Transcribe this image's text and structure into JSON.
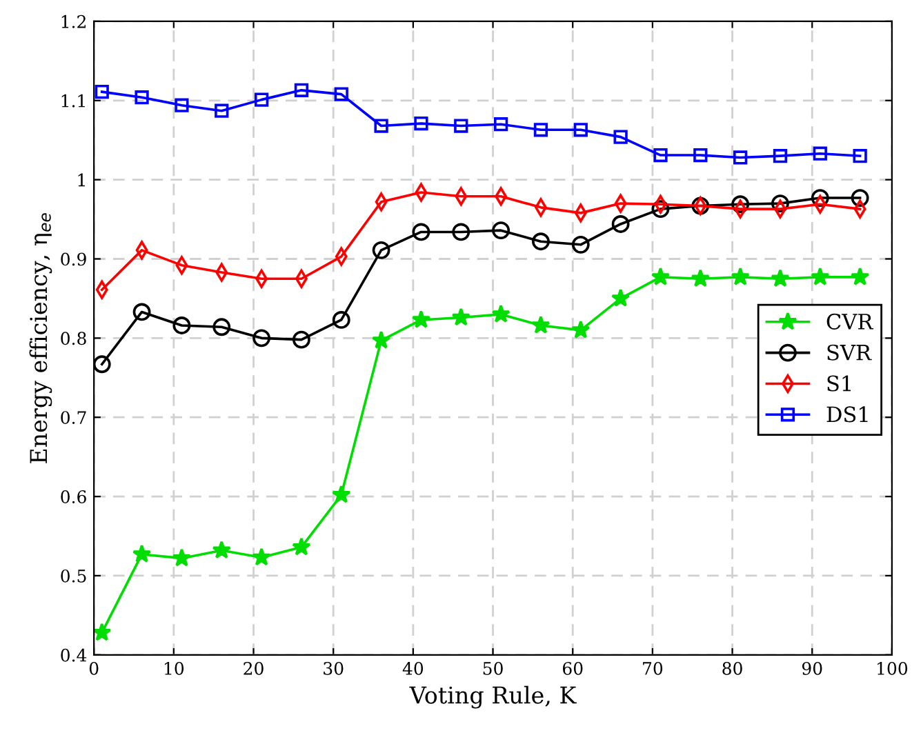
{
  "chart_data": {
    "type": "line",
    "xlabel": "Voting Rule, K",
    "ylabel": "Energy efficiency, η$_{ee}$",
    "x": [
      1,
      6,
      11,
      16,
      21,
      26,
      31,
      36,
      41,
      46,
      51,
      56,
      61,
      66,
      71,
      76,
      81,
      86,
      91,
      96
    ],
    "series": [
      {
        "name": "CVR",
        "color": "#00dd00",
        "marker": "star",
        "values": [
          0.428,
          0.527,
          0.522,
          0.532,
          0.523,
          0.536,
          0.602,
          0.797,
          0.823,
          0.826,
          0.83,
          0.816,
          0.81,
          0.85,
          0.877,
          0.875,
          0.877,
          0.875,
          0.877,
          0.877
        ]
      },
      {
        "name": "SVR",
        "color": "#000000",
        "marker": "circle",
        "values": [
          0.767,
          0.833,
          0.816,
          0.814,
          0.8,
          0.798,
          0.823,
          0.911,
          0.934,
          0.934,
          0.936,
          0.922,
          0.918,
          0.944,
          0.963,
          0.967,
          0.969,
          0.97,
          0.977,
          0.977
        ]
      },
      {
        "name": "S1",
        "color": "#ff0000",
        "marker": "diamond",
        "values": [
          0.861,
          0.911,
          0.892,
          0.883,
          0.875,
          0.875,
          0.903,
          0.972,
          0.984,
          0.979,
          0.979,
          0.965,
          0.958,
          0.97,
          0.969,
          0.967,
          0.963,
          0.963,
          0.969,
          0.963
        ]
      },
      {
        "name": "DS1",
        "color": "#0000ff",
        "marker": "square",
        "values": [
          1.111,
          1.104,
          1.094,
          1.087,
          1.101,
          1.113,
          1.108,
          1.068,
          1.071,
          1.068,
          1.07,
          1.063,
          1.063,
          1.054,
          1.031,
          1.031,
          1.028,
          1.03,
          1.033,
          1.03
        ]
      }
    ],
    "xlim": [
      0,
      100
    ],
    "xticks": [
      0,
      10,
      20,
      30,
      40,
      50,
      60,
      70,
      80,
      90,
      100
    ],
    "ylim": [
      0.4,
      1.2
    ],
    "yticks": [
      0.4,
      0.5,
      0.6,
      0.7,
      0.8,
      0.9,
      1,
      1.1,
      1.2
    ],
    "grid": true,
    "legend": "right",
    "line_style": "solid"
  }
}
